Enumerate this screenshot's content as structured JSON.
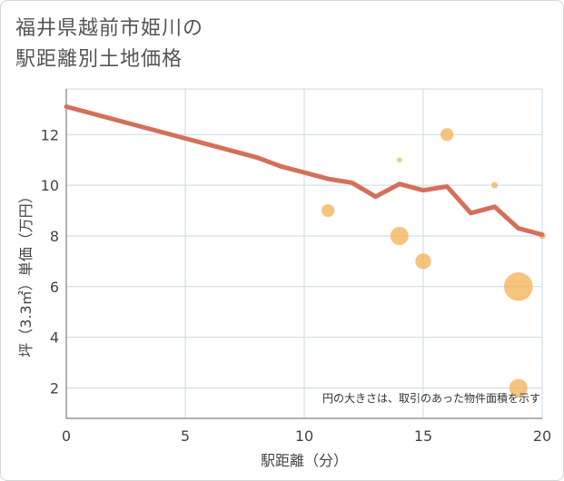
{
  "page": {
    "title_line1": "福井県越前市姫川の",
    "title_line2": "駅距離別土地価格"
  },
  "chart_data": {
    "type": "scatter",
    "title": "福井県越前市姫川の駅距離別土地価格",
    "xlabel": "駅距離（分）",
    "ylabel": "坪（3.3㎡）単価（万円）",
    "xlim": [
      0,
      20
    ],
    "ylim": [
      0.8,
      13.8
    ],
    "xticks": [
      0,
      5,
      10,
      15,
      20
    ],
    "yticks": [
      2,
      4,
      6,
      8,
      10,
      12
    ],
    "grid": true,
    "note": "円の大きさは、取引のあった物件面積を示す",
    "colors": {
      "line": "#d4705a",
      "bubble": "#f2b35a",
      "grid": "#c9d9e6"
    },
    "trend_line": {
      "x": [
        0,
        1,
        2,
        3,
        4,
        5,
        6,
        7,
        8,
        9,
        10,
        11,
        12,
        13,
        14,
        15,
        16,
        17,
        18,
        19,
        20
      ],
      "y": [
        13.1,
        12.85,
        12.6,
        12.35,
        12.1,
        11.85,
        11.6,
        11.35,
        11.1,
        10.75,
        10.5,
        10.25,
        10.1,
        9.55,
        10.05,
        9.8,
        9.95,
        8.9,
        9.15,
        8.3,
        8.05
      ]
    },
    "bubbles": [
      {
        "x": 11,
        "y": 9.0,
        "size": 2
      },
      {
        "x": 14,
        "y": 11.0,
        "size": 0.3
      },
      {
        "x": 14,
        "y": 8.0,
        "size": 4
      },
      {
        "x": 15,
        "y": 7.0,
        "size": 3
      },
      {
        "x": 16,
        "y": 12.0,
        "size": 2
      },
      {
        "x": 18,
        "y": 10.0,
        "size": 0.5
      },
      {
        "x": 19,
        "y": 6.0,
        "size": 10
      },
      {
        "x": 19,
        "y": 2.0,
        "size": 4
      },
      {
        "x": 20,
        "y": 8.0,
        "size": 0.5
      }
    ]
  }
}
